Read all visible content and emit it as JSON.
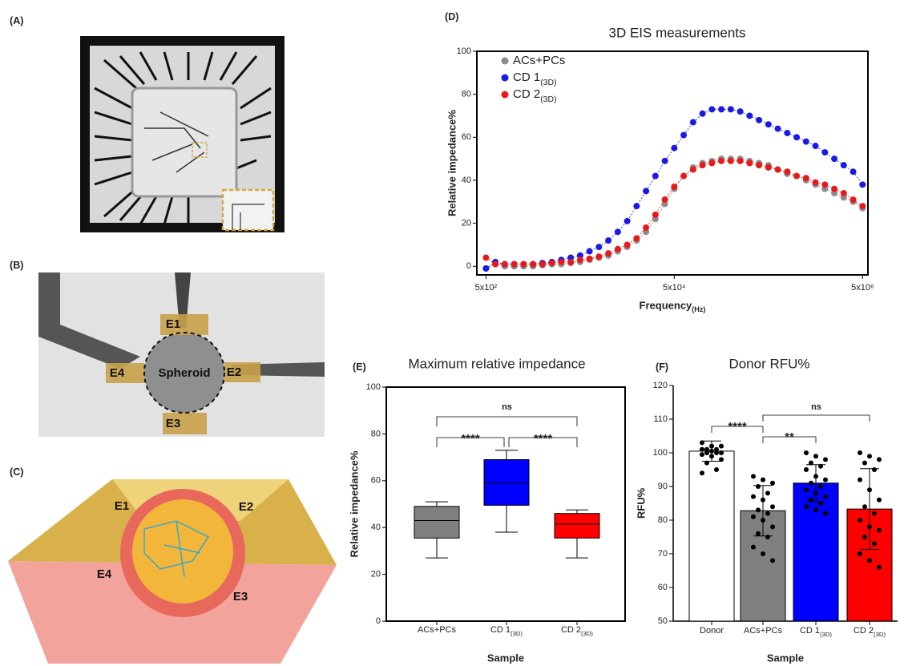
{
  "panel_labels": [
    "(A)",
    "(B)",
    "(C)",
    "(D)",
    "(E)",
    "(F)"
  ],
  "panel_b": {
    "labels": [
      "E1",
      "E2",
      "E3",
      "E4",
      "Spheroid"
    ]
  },
  "panel_c": {
    "labels": [
      "E1",
      "E2",
      "E3",
      "E4"
    ]
  },
  "chart_data": [
    {
      "type": "scatter",
      "title": "3D EIS measurements",
      "x_label": "Frequency(Hz)",
      "y_label": "Relative impedance%",
      "log_x": true,
      "xlim": [
        400,
        5700000
      ],
      "xticks": [
        {
          "value": 500,
          "label": "5x10²"
        },
        {
          "value": 50000,
          "label": "5x10⁴"
        },
        {
          "value": 5000000,
          "label": "5x10⁶"
        }
      ],
      "ylim": [
        -4,
        100
      ],
      "yticks": [
        0,
        20,
        40,
        60,
        80,
        100
      ],
      "legend": "upper left",
      "x": [
        500,
        629,
        792,
        998,
        1256,
        1581,
        1991,
        2506,
        3155,
        3972,
        5000,
        6295,
        7924,
        9976,
        12559,
        15811,
        19905,
        25059,
        31548,
        39716,
        50000,
        62946,
        79245,
        99763,
        125594,
        158114,
        199054,
        250594,
        315479,
        397164,
        500000,
        629463,
        792447,
        997631,
        1255943,
        1581139,
        1990536,
        2505936,
        3154787,
        3971641,
        5000000
      ],
      "series": [
        {
          "name": "ACs+PCs",
          "color": "#8c8c8c",
          "values": [
            -1,
            1,
            0,
            0,
            0,
            0,
            0.5,
            1,
            1,
            1.5,
            2,
            3,
            4,
            5,
            7,
            9,
            12,
            16,
            22,
            29,
            36,
            42,
            46,
            48,
            49,
            50,
            50,
            50,
            49,
            48,
            47,
            45,
            43,
            42,
            40,
            38,
            36,
            34,
            32,
            30,
            27
          ]
        },
        {
          "name": "CD 1(3D)",
          "color": "#1a1ae6",
          "values": [
            -1,
            2,
            1,
            1,
            1,
            1,
            1.5,
            2,
            3,
            4,
            5,
            7,
            9,
            12,
            16,
            21,
            28,
            35,
            42,
            49,
            55,
            61,
            67,
            71,
            73,
            73,
            73,
            72,
            70,
            68,
            66,
            64,
            62,
            60,
            58,
            56,
            53,
            50,
            47,
            44,
            38
          ]
        },
        {
          "name": "CD 2(3D)",
          "color": "#e61a1a",
          "values": [
            4,
            1,
            1,
            1,
            1,
            1,
            1,
            1.5,
            2,
            2,
            3,
            3.5,
            4.5,
            6,
            8,
            10,
            13,
            18,
            24,
            31,
            37,
            42,
            45,
            47,
            48,
            49,
            49,
            49,
            48,
            47,
            46,
            45,
            44,
            42,
            41,
            39,
            38,
            36,
            34,
            31,
            28
          ]
        }
      ]
    },
    {
      "type": "box",
      "title": "Maximum relative impedance",
      "x_label": "Sample",
      "y_label": "Relative impedance%",
      "categories": [
        "ACs+PCs",
        "CD 1(3D)",
        "CD 2(3D)"
      ],
      "colors": [
        "#808080",
        "#0000ff",
        "#ff0000"
      ],
      "boxes": [
        {
          "min": 27,
          "q1": 35.5,
          "median": 43,
          "q3": 49,
          "max": 51
        },
        {
          "min": 38,
          "q1": 49.5,
          "median": 59,
          "q3": 69,
          "max": 73
        },
        {
          "min": 27,
          "q1": 35.5,
          "median": 41.5,
          "q3": 46,
          "max": 47.5
        }
      ],
      "ylim": [
        0,
        100
      ],
      "yticks": [
        0,
        20,
        40,
        60,
        80,
        100
      ],
      "annotations": [
        "****",
        "****",
        "ns"
      ]
    },
    {
      "type": "bar",
      "title": "Donor RFU%",
      "x_label": "Sample",
      "y_label": "RFU%",
      "categories": [
        "Donor",
        "ACs+PCs",
        "CD 1(3D)",
        "CD 2(3D)"
      ],
      "colors": [
        "#ffffff",
        "#808080",
        "#0000ff",
        "#ff0000"
      ],
      "values": [
        100.5,
        82.8,
        91,
        83.3
      ],
      "errors": [
        3,
        7.5,
        5.5,
        12
      ],
      "points": [
        [
          103,
          102,
          102,
          101,
          101,
          101,
          100.5,
          100,
          100,
          100,
          99.5,
          99,
          98,
          97,
          95,
          94
        ],
        [
          93,
          92,
          91,
          90,
          88,
          87,
          86,
          84,
          83,
          82,
          81,
          80,
          78,
          76,
          75,
          72,
          70,
          68
        ],
        [
          100,
          99,
          98,
          97,
          96,
          95,
          93,
          92,
          91,
          90,
          89,
          88,
          87,
          86,
          85,
          84,
          83,
          82
        ],
        [
          100,
          99,
          98,
          97,
          95,
          92,
          89,
          86,
          84,
          82,
          80,
          78,
          77,
          75,
          73,
          70,
          68,
          66
        ]
      ],
      "ylim": [
        50,
        120
      ],
      "yticks": [
        50,
        60,
        70,
        80,
        90,
        100,
        110,
        120
      ],
      "annotations": [
        "****",
        "**",
        "ns"
      ]
    }
  ]
}
